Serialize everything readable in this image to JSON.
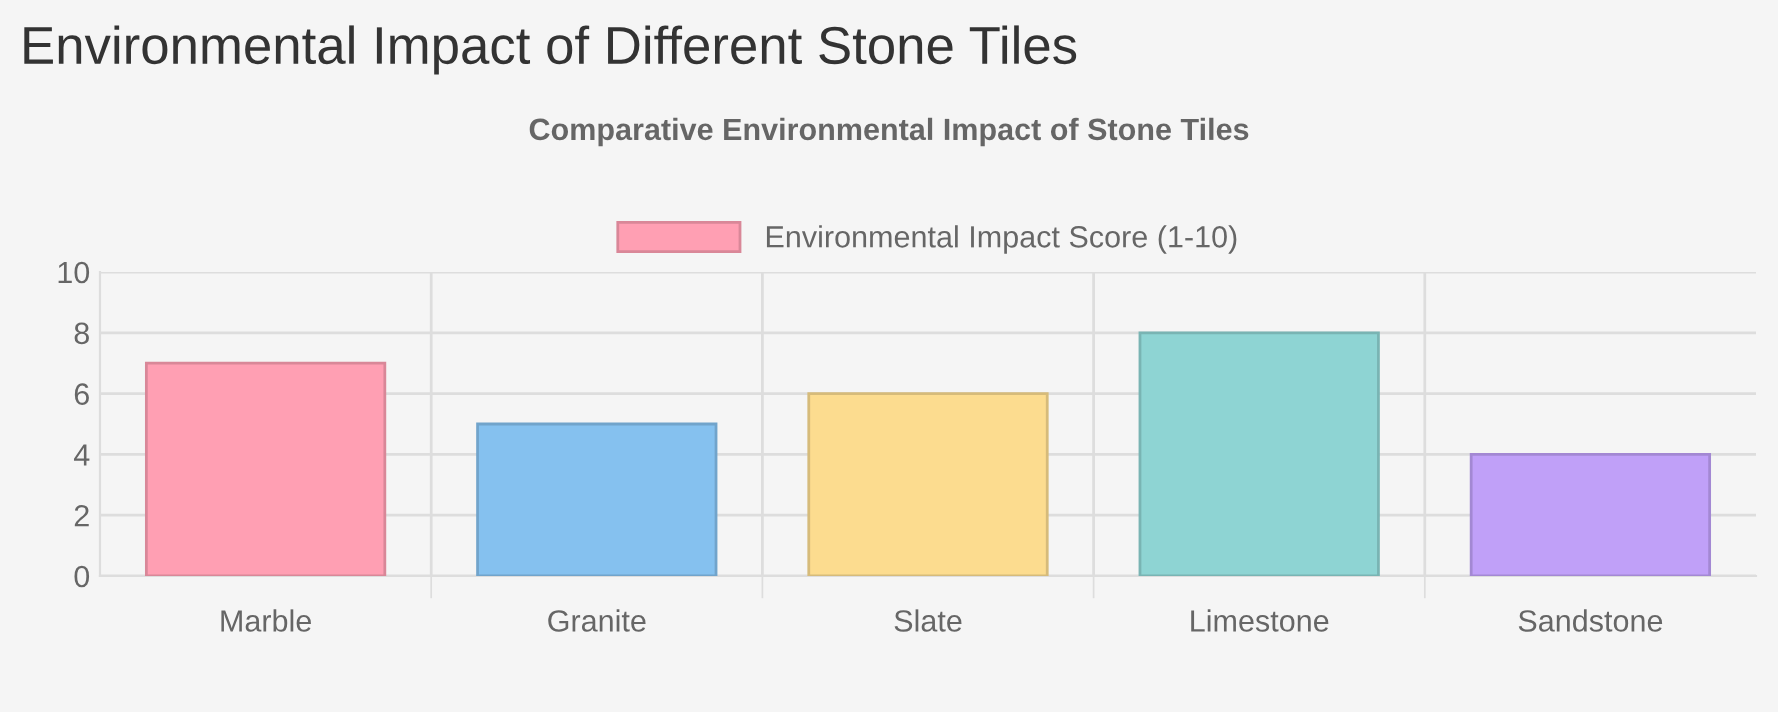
{
  "chart_data": {
    "type": "bar",
    "title": "Environmental Impact of Different Stone Tiles",
    "subtitle": "Comparative Environmental Impact of Stone Tiles",
    "categories": [
      "Marble",
      "Granite",
      "Slate",
      "Limestone",
      "Sandstone"
    ],
    "series": [
      {
        "name": "Environmental Impact Score (1-10)",
        "colors": [
          "#ff9fb3",
          "#85c1ef",
          "#fcdc8f",
          "#8ed4d3",
          "#c0a0f8"
        ],
        "values": [
          7,
          5,
          6,
          8,
          4
        ]
      }
    ],
    "ylim": [
      0,
      10
    ],
    "yticks": [
      0,
      2,
      4,
      6,
      8,
      10
    ],
    "grid": true,
    "legend": "top"
  }
}
